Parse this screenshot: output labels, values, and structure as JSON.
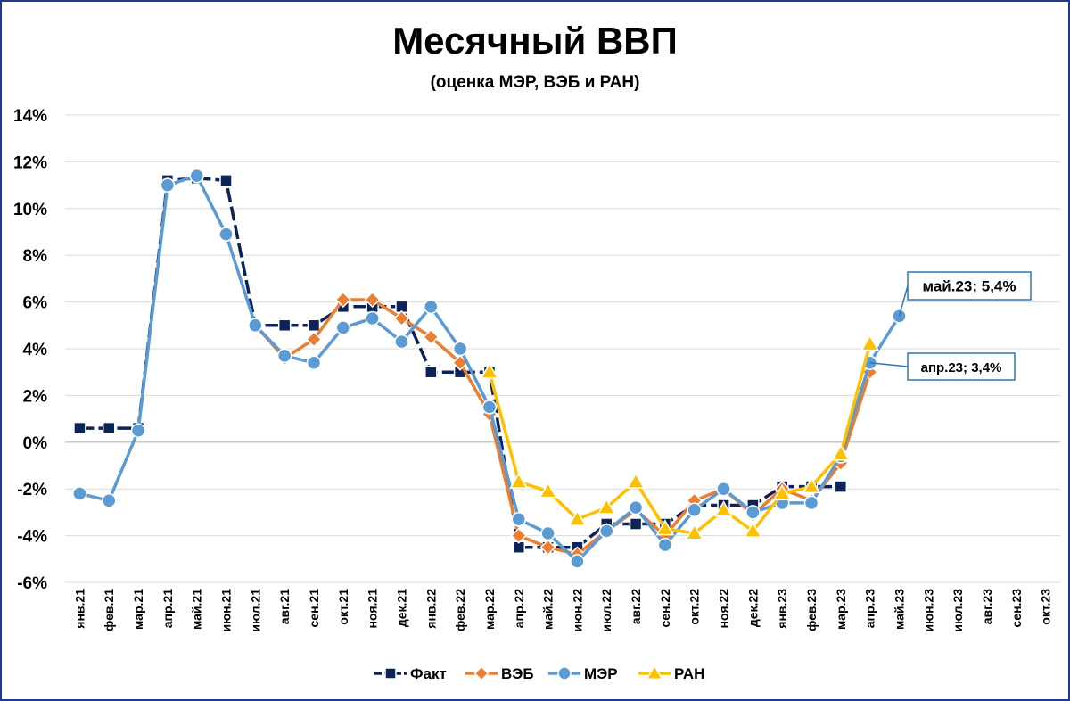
{
  "chart_data": {
    "type": "line",
    "title": "Месячный ВВП",
    "subtitle": "(оценка МЭР, ВЭБ и РАН)",
    "ylim": [
      -6,
      14
    ],
    "yticks": [
      14,
      12,
      10,
      8,
      6,
      4,
      2,
      0,
      -2,
      -4,
      -6
    ],
    "ytick_labels": [
      "14%",
      "12%",
      "10%",
      "8%",
      "6%",
      "4%",
      "2%",
      "0%",
      "-2%",
      "-4%",
      "-6%"
    ],
    "grid": true,
    "legend_position": "bottom",
    "categories": [
      "янв.21",
      "фев.21",
      "мар.21",
      "апр.21",
      "май.21",
      "июн.21",
      "июл.21",
      "авг.21",
      "сен.21",
      "окт.21",
      "ноя.21",
      "дек.21",
      "янв.22",
      "фев.22",
      "мар.22",
      "апр.22",
      "май.22",
      "июн.22",
      "июл.22",
      "авг.22",
      "сен.22",
      "окт.22",
      "ноя.22",
      "дек.22",
      "янв.23",
      "фев.23",
      "мар.23",
      "апр.23",
      "май.23",
      "июн.23",
      "июл.23",
      "авг.23",
      "сен.23",
      "окт.23"
    ],
    "series": [
      {
        "name": "Факт",
        "color": "#0d2259",
        "marker": "square",
        "dashed": true,
        "values": [
          0.6,
          0.6,
          0.6,
          11.2,
          11.3,
          11.2,
          5.0,
          5.0,
          5.0,
          5.8,
          5.8,
          5.8,
          3.0,
          3.0,
          3.0,
          -4.5,
          -4.5,
          -4.5,
          -3.5,
          -3.5,
          -3.5,
          -2.7,
          -2.7,
          -2.7,
          -1.9,
          -1.9,
          -1.9,
          null,
          null,
          null,
          null,
          null,
          null,
          null
        ]
      },
      {
        "name": "ВЭБ",
        "color": "#ed7d31",
        "marker": "diamond",
        "dashed": false,
        "values": [
          null,
          null,
          null,
          null,
          null,
          null,
          5.0,
          3.6,
          4.4,
          6.1,
          6.1,
          5.3,
          4.5,
          3.4,
          1.2,
          -4.0,
          -4.5,
          -4.8,
          -3.8,
          -2.9,
          -4.0,
          -2.5,
          -2.0,
          -3.1,
          -2.0,
          -2.5,
          -0.9,
          3.0,
          null,
          null,
          null,
          null,
          null,
          null
        ]
      },
      {
        "name": "МЭР",
        "color": "#5b9bd5",
        "marker": "circle",
        "dashed": false,
        "values": [
          -2.2,
          -2.5,
          0.5,
          11.0,
          11.4,
          8.9,
          5.0,
          3.7,
          3.4,
          4.9,
          5.3,
          4.3,
          5.8,
          4.0,
          1.5,
          -3.3,
          -3.9,
          -5.1,
          -3.8,
          -2.8,
          -4.4,
          -2.9,
          -2.0,
          -3.0,
          -2.6,
          -2.6,
          -0.6,
          3.4,
          5.4,
          null,
          null,
          null,
          null,
          null
        ]
      },
      {
        "name": "РАН",
        "color": "#ffc000",
        "marker": "triangle",
        "dashed": false,
        "values": [
          null,
          null,
          null,
          null,
          null,
          null,
          null,
          null,
          null,
          null,
          null,
          null,
          null,
          null,
          3.0,
          -1.7,
          -2.1,
          -3.3,
          -2.8,
          -1.7,
          -3.7,
          -3.9,
          -2.9,
          -3.8,
          -2.2,
          -1.9,
          -0.5,
          4.2,
          null,
          null,
          null,
          null,
          null,
          null
        ]
      }
    ],
    "annotations": [
      {
        "text": "май.23; 5,4%",
        "category": "май.23",
        "value": 5.4
      },
      {
        "text": "апр.23; 3,4%",
        "category": "апр.23",
        "value": 3.4
      }
    ]
  }
}
